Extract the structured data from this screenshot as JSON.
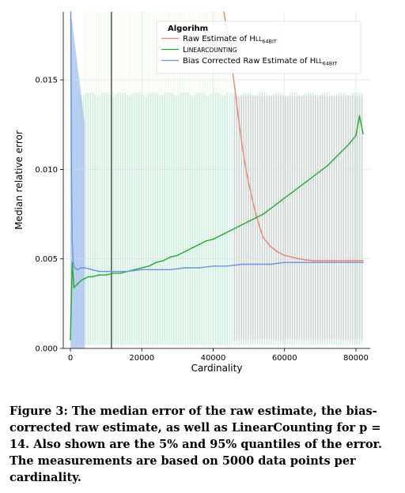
{
  "chart_data": {
    "type": "line",
    "xlabel": "Cardinality",
    "ylabel": "Median relative error",
    "xlim": [
      -2000,
      84000
    ],
    "ylim": [
      0,
      0.0188
    ],
    "xticks": [
      0,
      20000,
      40000,
      60000,
      80000
    ],
    "xtick_labels": [
      "0",
      "20000",
      "40000",
      "60000",
      "80000"
    ],
    "yticks": [
      0.0,
      0.005,
      0.01,
      0.015
    ],
    "ytick_labels": [
      "0.000",
      "0.005",
      "0.010",
      "0.015"
    ],
    "grid": true,
    "vertical_marker_x": 11500,
    "legend": {
      "title": "Algorihm",
      "placement": "top-right",
      "entries": [
        {
          "main": "Raw Estimate of H",
          "smallcaps": "LL",
          "sub": "64Bit",
          "color": "#f08070"
        },
        {
          "main": "L",
          "smallcaps": "inearCounting",
          "sub": "",
          "color": "#22aa33"
        },
        {
          "main": "Bias Corrected Raw Estimate of H",
          "smallcaps": "LL",
          "sub": "64Bit",
          "color": "#6f8fe8"
        }
      ]
    },
    "series": [
      {
        "name": "Raw Estimate of HLL64Bit",
        "color": "#f08070",
        "x": [
          43000,
          44000,
          45000,
          46000,
          47000,
          48000,
          49000,
          50000,
          51000,
          52000,
          53000,
          54000,
          56000,
          58000,
          60000,
          64000,
          68000,
          72000,
          76000,
          80000,
          82000
        ],
        "y": [
          0.0188,
          0.0176,
          0.0162,
          0.0146,
          0.013,
          0.0115,
          0.0102,
          0.0092,
          0.0083,
          0.0075,
          0.0068,
          0.0062,
          0.0057,
          0.0054,
          0.0052,
          0.005,
          0.0049,
          0.0049,
          0.0049,
          0.0049,
          0.0049
        ],
        "band_lower": [
          0.0
        ],
        "band_upper": [
          0.0188
        ]
      },
      {
        "name": "LinearCounting",
        "color": "#22aa33",
        "x": [
          0,
          500,
          1000,
          2000,
          3000,
          4000,
          5000,
          6000,
          8000,
          10000,
          12000,
          14000,
          16000,
          18000,
          20000,
          22000,
          24000,
          26000,
          28000,
          30000,
          32000,
          34000,
          36000,
          38000,
          40000,
          42000,
          44000,
          46000,
          48000,
          50000,
          52000,
          54000,
          56000,
          58000,
          60000,
          62000,
          64000,
          66000,
          68000,
          70000,
          72000,
          74000,
          76000,
          78000,
          80000,
          81000,
          82000
        ],
        "y": [
          0.0005,
          0.0048,
          0.0034,
          0.0036,
          0.0038,
          0.0039,
          0.004,
          0.004,
          0.0041,
          0.0041,
          0.0042,
          0.0042,
          0.0043,
          0.0044,
          0.0045,
          0.0046,
          0.0048,
          0.0049,
          0.0051,
          0.0052,
          0.0054,
          0.0056,
          0.0058,
          0.006,
          0.0061,
          0.0063,
          0.0065,
          0.0067,
          0.0069,
          0.0071,
          0.0073,
          0.0075,
          0.0078,
          0.0081,
          0.0084,
          0.0087,
          0.009,
          0.0093,
          0.0096,
          0.0099,
          0.0102,
          0.0106,
          0.011,
          0.0114,
          0.0119,
          0.013,
          0.012
        ],
        "band_lower": [
          0.0
        ],
        "band_upper": [
          0.0188
        ]
      },
      {
        "name": "Bias Corrected Raw Estimate of HLL64Bit",
        "color": "#6f8fe8",
        "x": [
          100,
          200,
          300,
          500,
          800,
          1200,
          2000,
          3000,
          4000,
          6000,
          8000,
          10000,
          12000,
          16000,
          20000,
          24000,
          28000,
          32000,
          36000,
          40000,
          44000,
          48000,
          52000,
          56000,
          60000,
          64000,
          68000,
          72000,
          76000,
          80000,
          82000
        ],
        "y": [
          0.0188,
          0.015,
          0.0095,
          0.006,
          0.0048,
          0.0045,
          0.0044,
          0.0045,
          0.0045,
          0.0044,
          0.0043,
          0.0043,
          0.0043,
          0.0043,
          0.0044,
          0.0044,
          0.0044,
          0.0045,
          0.0045,
          0.0046,
          0.0046,
          0.0047,
          0.0047,
          0.0047,
          0.0048,
          0.0048,
          0.0048,
          0.0048,
          0.0048,
          0.0048,
          0.0048
        ],
        "band_lower": [
          0.0
        ],
        "band_upper": [
          0.0188
        ]
      }
    ]
  },
  "caption": "Figure 3: The median error of the raw estimate, the bias-corrected raw estimate, as well as LinearCounting for p = 14. Also shown are the 5% and 95% quantiles of the error. The measurements are based on 5000 data points per cardinality."
}
